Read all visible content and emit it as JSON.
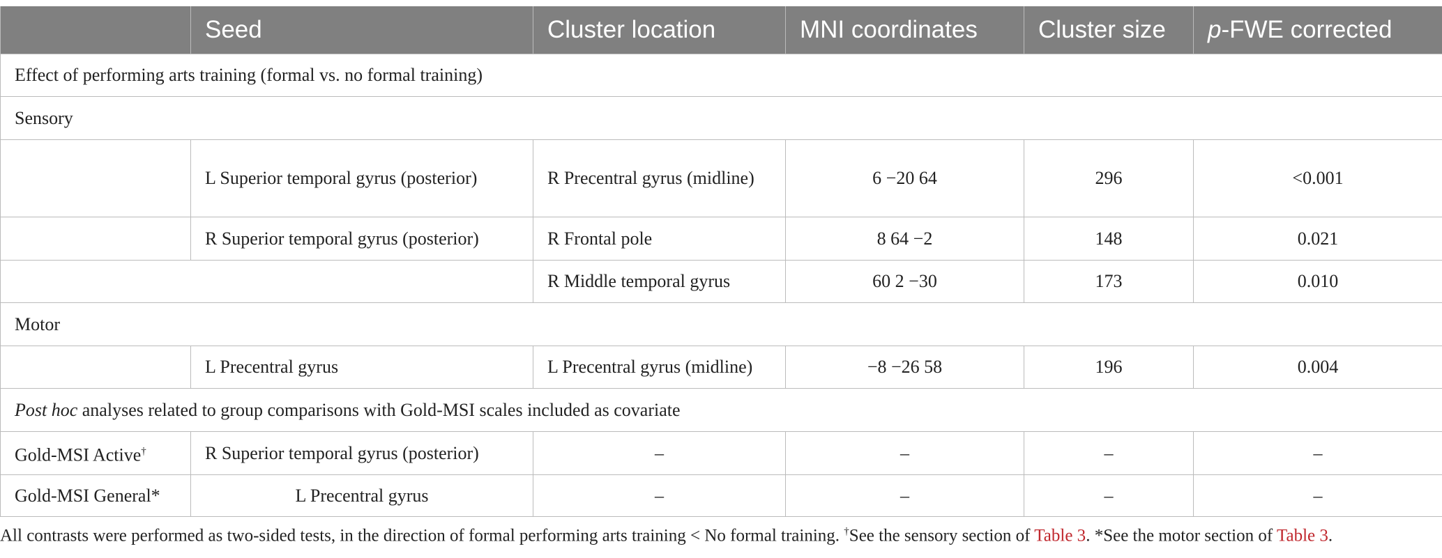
{
  "table": {
    "header": [
      "Seed",
      "Cluster location",
      "MNI coordinates",
      "Cluster size",
      {
        "italic": "p",
        "rest": "-FWE corrected"
      }
    ],
    "rows": [
      {
        "section": "Effect of performing arts training (formal vs. no formal training)"
      },
      {
        "section": "Sensory"
      },
      {
        "seed": "L Superior temporal gyrus (posterior)",
        "location": "R Precentral gyrus (midline)",
        "mni": "6 −20 64",
        "size": "296",
        "p": "<0.001"
      },
      {
        "seed": "R Superior temporal gyrus (posterior)",
        "location": "R Frontal pole",
        "mni": "8 64 −2",
        "size": "148",
        "p": "0.021"
      },
      {
        "location": "R Middle temporal gyrus",
        "mni": "60 2 −30",
        "size": "173",
        "p": "0.010"
      },
      {
        "section": "Motor"
      },
      {
        "seed": "L Precentral gyrus",
        "location": "L Precentral gyrus (midline)",
        "mni": "−8 −26 58",
        "size": "196",
        "p": "0.004"
      },
      {
        "section_italic": "Post hoc",
        "section": " analyses related to group comparisons with Gold-MSI scales included as covariate"
      },
      {
        "label": "Gold-MSI Active",
        "label_mark": "†",
        "seed": "R Superior temporal gyrus (posterior)",
        "location": "–",
        "mni": "–",
        "size": "–",
        "p": "–"
      },
      {
        "label": "Gold-MSI General*",
        "seed": "L Precentral gyrus",
        "location": "–",
        "mni": "–",
        "size": "–",
        "p": "–"
      }
    ],
    "footnote": [
      "All contrasts were performed as two-sided tests, in the direction of formal performing arts training < No formal training. ",
      "†",
      "See the sensory section of ",
      "Table 3",
      ". ",
      "*",
      "See the motor section of ",
      "Table 3",
      "."
    ]
  }
}
